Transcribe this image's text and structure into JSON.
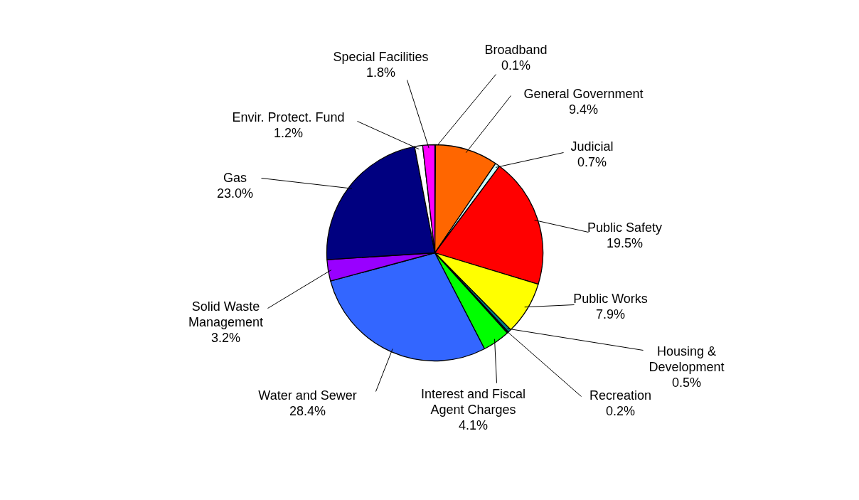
{
  "chart_data": {
    "type": "pie",
    "value_labels": [
      "0.1%",
      "9.4%",
      "0.7%",
      "19.5%",
      "7.9%",
      "0.5%",
      "0.2%",
      "4.1%",
      "28.4%",
      "3.2%",
      "23.0%",
      "1.2%",
      "1.8%"
    ],
    "categories": [
      "Broadband",
      "General Government",
      "Judicial",
      "Public Safety",
      "Public Works",
      "Housing & Development",
      "Recreation",
      "Interest and Fiscal Agent Charges",
      "Water and Sewer",
      "Solid Waste Management",
      "Gas",
      "Envir. Protect. Fund",
      "Special Facilities"
    ],
    "values": [
      0.1,
      9.4,
      0.7,
      19.5,
      7.9,
      0.5,
      0.2,
      4.1,
      28.4,
      3.2,
      23.0,
      1.2,
      1.8
    ],
    "colors": [
      "#333399",
      "#ff6600",
      "#ccffff",
      "#ff0000",
      "#ffff00",
      "#008080",
      "#003366",
      "#00ff00",
      "#3366ff",
      "#9900ff",
      "#000080",
      "#ffffff",
      "#ff00ff"
    ]
  }
}
